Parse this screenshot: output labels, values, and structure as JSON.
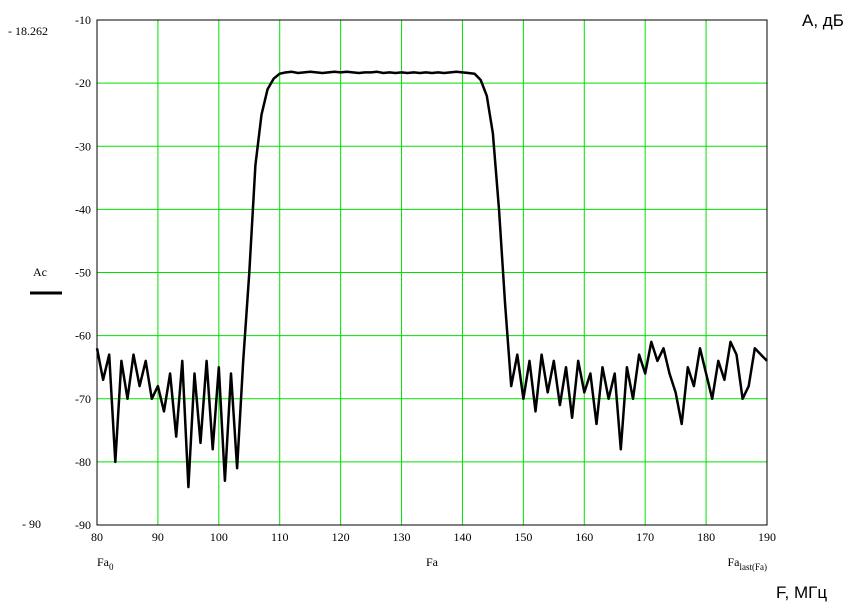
{
  "chart_data": {
    "type": "line",
    "y_axis_title": "А, дБ",
    "x_axis_title": "F, МГц",
    "top_marker_label": "- 18.262",
    "bottom_marker_label": "- 90",
    "x_labels": [
      {
        "main": "Fa",
        "sub": "0"
      },
      {
        "main": "Fa",
        "sub": ""
      },
      {
        "main": "Fa",
        "sub": "last(Fa)"
      }
    ],
    "xlim": [
      80,
      190
    ],
    "ylim": [
      -90,
      -10
    ],
    "xticks": [
      80,
      90,
      100,
      110,
      120,
      130,
      140,
      150,
      160,
      170,
      180,
      190
    ],
    "yticks": [
      -10,
      -20,
      -30,
      -40,
      -50,
      -60,
      -70,
      -80,
      -90
    ],
    "grid": true,
    "grid_color": "#00e000",
    "x": [
      80,
      81,
      82,
      83,
      84,
      85,
      86,
      87,
      88,
      89,
      90,
      91,
      92,
      93,
      94,
      95,
      96,
      97,
      98,
      99,
      100,
      101,
      102,
      103,
      104,
      105,
      106,
      107,
      108,
      109,
      110,
      111,
      112,
      113,
      114,
      115,
      116,
      117,
      118,
      119,
      120,
      121,
      122,
      123,
      124,
      125,
      126,
      127,
      128,
      129,
      130,
      131,
      132,
      133,
      134,
      135,
      136,
      137,
      138,
      139,
      140,
      141,
      142,
      143,
      144,
      145,
      146,
      147,
      148,
      149,
      150,
      151,
      152,
      153,
      154,
      155,
      156,
      157,
      158,
      159,
      160,
      161,
      162,
      163,
      164,
      165,
      166,
      167,
      168,
      169,
      170,
      171,
      172,
      173,
      174,
      175,
      176,
      177,
      178,
      179,
      180,
      181,
      182,
      183,
      184,
      185,
      186,
      187,
      188,
      189,
      190
    ],
    "series": [
      {
        "name": "Ac",
        "color": "#000000",
        "values": [
          -62,
          -67,
          -63,
          -80,
          -64,
          -70,
          -63,
          -68,
          -64,
          -70,
          -68,
          -72,
          -66,
          -76,
          -64,
          -84,
          -66,
          -77,
          -64,
          -78,
          -65,
          -83,
          -66,
          -81,
          -64,
          -50,
          -33,
          -25,
          -21,
          -19.3,
          -18.5,
          -18.3,
          -18.2,
          -18.4,
          -18.3,
          -18.2,
          -18.3,
          -18.4,
          -18.3,
          -18.2,
          -18.3,
          -18.2,
          -18.3,
          -18.4,
          -18.3,
          -18.3,
          -18.2,
          -18.4,
          -18.3,
          -18.4,
          -18.3,
          -18.4,
          -18.3,
          -18.4,
          -18.3,
          -18.4,
          -18.3,
          -18.4,
          -18.3,
          -18.2,
          -18.3,
          -18.4,
          -18.5,
          -19.5,
          -22,
          -28,
          -40,
          -55,
          -68,
          -63,
          -70,
          -64,
          -72,
          -63,
          -69,
          -64,
          -71,
          -65,
          -73,
          -64,
          -69,
          -66,
          -74,
          -65,
          -70,
          -66,
          -78,
          -65,
          -70,
          -63,
          -66,
          -61,
          -64,
          -62,
          -66,
          -69,
          -74,
          -65,
          -68,
          -62,
          -66,
          -70,
          -64,
          -67,
          -61,
          -63,
          -70,
          -68,
          -62,
          -63,
          -64
        ]
      }
    ]
  }
}
